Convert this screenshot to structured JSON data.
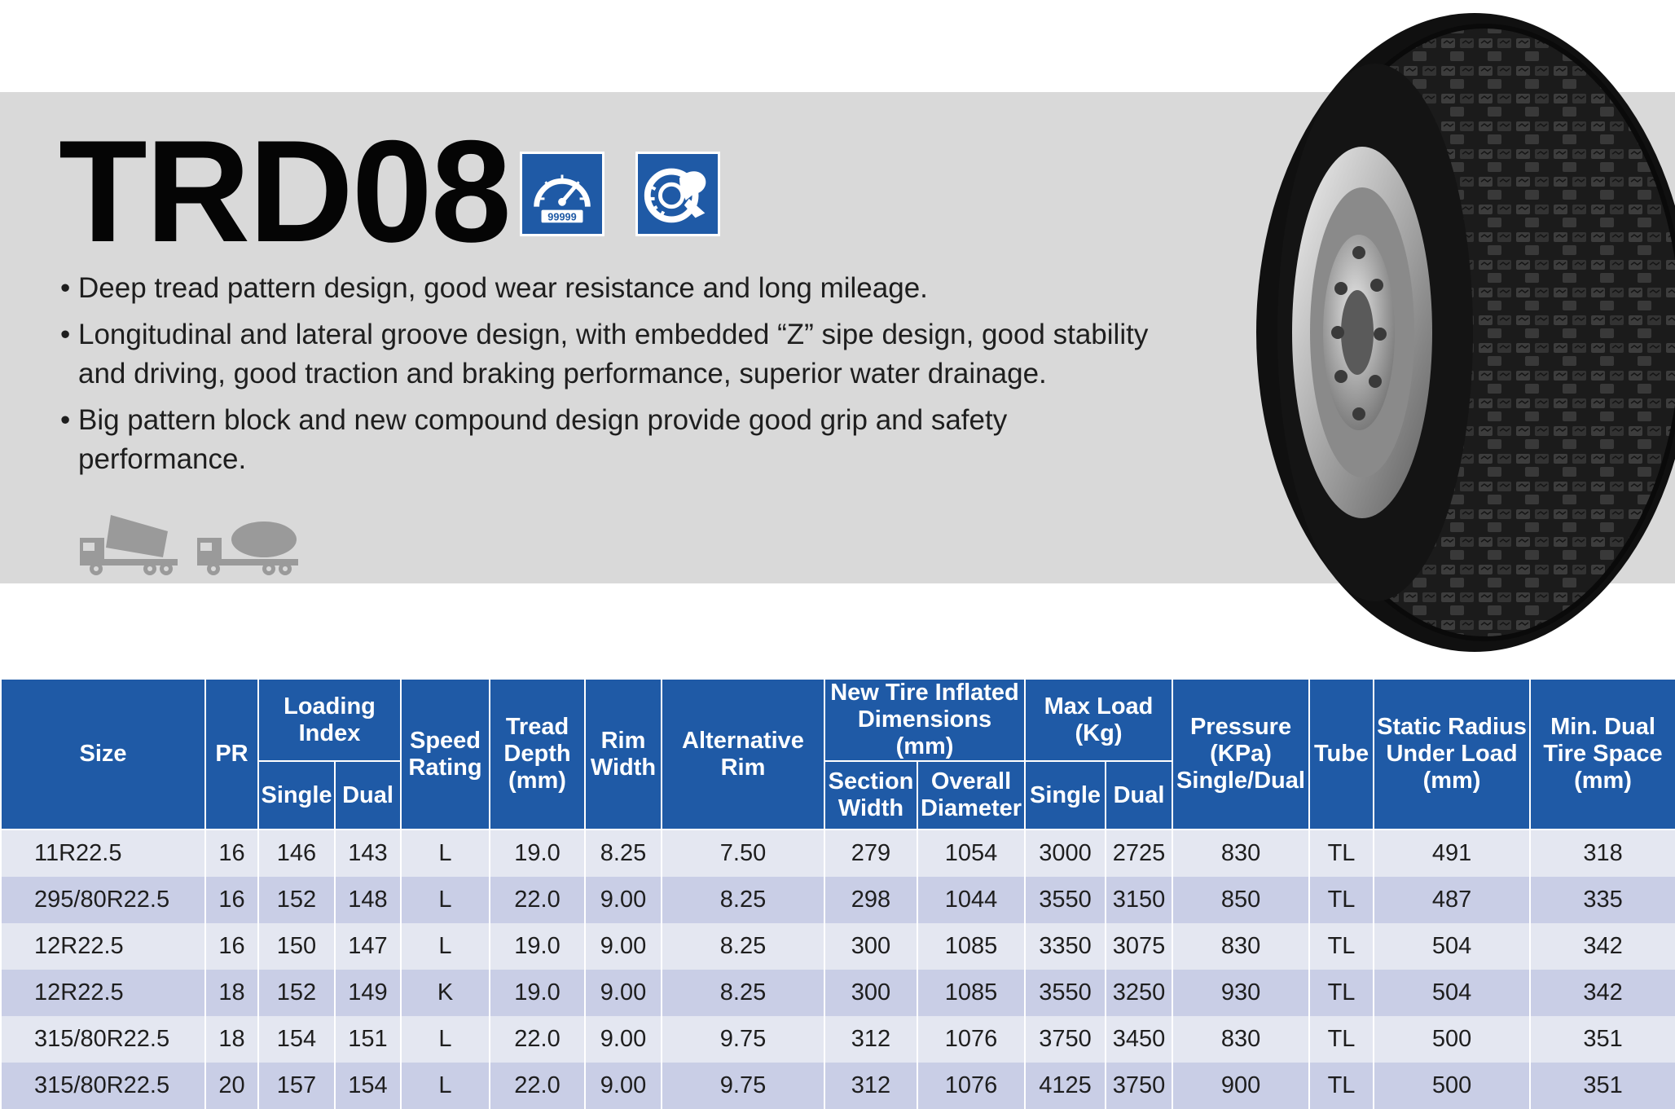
{
  "model": "TRD08",
  "badges": {
    "mileage_counter": "99999"
  },
  "features": [
    "Deep tread pattern design, good wear resistance and long mileage.",
    "Longitudinal and lateral groove design, with embedded “Z” sipe design, good stability and driving, good traction and braking performance, superior water drainage.",
    "Big pattern block and new compound design provide good grip and safety performance."
  ],
  "table": {
    "headers": {
      "size": "Size",
      "pr": "PR",
      "loading_index": "Loading Index",
      "loading_single": "Single",
      "loading_dual": "Dual",
      "speed_rating": "Speed Rating",
      "tread_depth": "Tread Depth (mm)",
      "rim_width": "Rim Width",
      "alternative_rim": "Alternative Rim",
      "new_tire_dims": "New Tire Inflated Dimensions (mm)",
      "section_width": "Section Width",
      "overall_diameter": "Overall Diameter",
      "max_load": "Max Load (Kg)",
      "max_load_single": "Single",
      "max_load_dual": "Dual",
      "pressure": "Pressure (KPa) Single/Dual",
      "tube": "Tube",
      "static_radius": "Static Radius Under Load (mm)",
      "min_dual_space": "Min. Dual Tire Space (mm)"
    },
    "rows": [
      [
        "11R22.5",
        "16",
        "146",
        "143",
        "L",
        "19.0",
        "8.25",
        "7.50",
        "279",
        "1054",
        "3000",
        "2725",
        "830",
        "TL",
        "491",
        "318"
      ],
      [
        "295/80R22.5",
        "16",
        "152",
        "148",
        "L",
        "22.0",
        "9.00",
        "8.25",
        "298",
        "1044",
        "3550",
        "3150",
        "850",
        "TL",
        "487",
        "335"
      ],
      [
        "12R22.5",
        "16",
        "150",
        "147",
        "L",
        "19.0",
        "9.00",
        "8.25",
        "300",
        "1085",
        "3350",
        "3075",
        "830",
        "TL",
        "504",
        "342"
      ],
      [
        "12R22.5",
        "18",
        "152",
        "149",
        "K",
        "19.0",
        "9.00",
        "8.25",
        "300",
        "1085",
        "3550",
        "3250",
        "930",
        "TL",
        "504",
        "342"
      ],
      [
        "315/80R22.5",
        "18",
        "154",
        "151",
        "L",
        "22.0",
        "9.00",
        "9.75",
        "312",
        "1076",
        "3750",
        "3450",
        "830",
        "TL",
        "500",
        "351"
      ],
      [
        "315/80R22.5",
        "20",
        "157",
        "154",
        "L",
        "22.0",
        "9.00",
        "9.75",
        "312",
        "1076",
        "4125",
        "3750",
        "900",
        "TL",
        "500",
        "351"
      ]
    ]
  },
  "colors": {
    "header_blue": "#1f5aa6",
    "band_gray": "#d9d9d9",
    "row_light": "#e4e7f1",
    "row_dark": "#c9cee6"
  },
  "icons": [
    "mileage-gauge-icon",
    "tire-grip-icon",
    "dump-truck-icon",
    "mixer-truck-icon",
    "tire-image"
  ]
}
